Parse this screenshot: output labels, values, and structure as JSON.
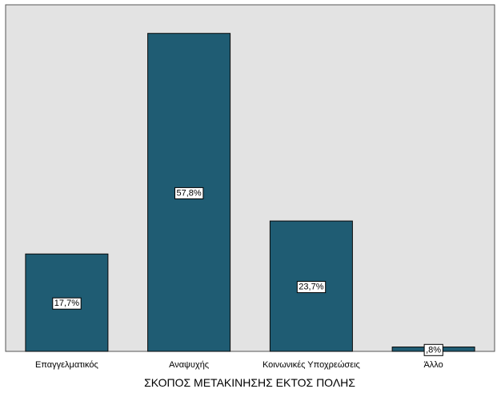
{
  "chart_data": {
    "type": "bar",
    "title": "",
    "xlabel": "ΣΚΟΠΟΣ ΜΕΤΑΚΙΝΗΣΗΣ ΕΚΤΟΣ ΠΟΛΗΣ",
    "ylabel": "",
    "categories": [
      "Επαγγελματικός",
      "Αναψυχής",
      "Κοινωνικές Υποχρεώσεις",
      "Άλλο"
    ],
    "values": [
      17.7,
      57.8,
      23.7,
      0.8
    ],
    "data_labels": [
      "17,7%",
      "57,8%",
      "23,7%",
      ",8%"
    ],
    "ylim": [
      0,
      63
    ],
    "grid": false,
    "legend": "none",
    "colors": {
      "bar": "#1f5c73",
      "bar_edge": "#0a0a0a",
      "plot_background": "#e3e3e3",
      "plot_border": "#555555",
      "label_box": "#ffffff"
    }
  }
}
